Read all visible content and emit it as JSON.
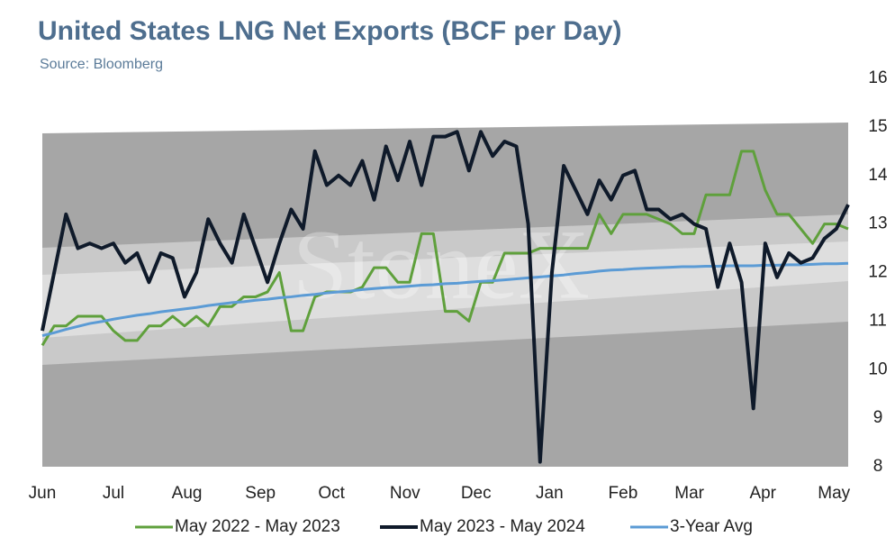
{
  "chart_data": {
    "type": "line",
    "title": "United States LNG Net Exports (BCF per Day)",
    "subtitle": "Source: Bloomberg",
    "watermark": "StoneX",
    "x": [
      0,
      5,
      10,
      15,
      20,
      25,
      30,
      35,
      40,
      45,
      50,
      55,
      60,
      65,
      70,
      75,
      80,
      85,
      90,
      95,
      100,
      105,
      110,
      115,
      120,
      125,
      130,
      135,
      140,
      145,
      150,
      155,
      160,
      165,
      170,
      175,
      180,
      185,
      190,
      195,
      200,
      205,
      210,
      215,
      220,
      225,
      230,
      235,
      240,
      245,
      250,
      255,
      260,
      265,
      270,
      275,
      280,
      285,
      290,
      295,
      300,
      305,
      310,
      315,
      320,
      325,
      330,
      335,
      340
    ],
    "xlim": [
      0,
      340
    ],
    "xticks": [
      {
        "value": 0,
        "label": "Jun"
      },
      {
        "value": 30,
        "label": "Jul"
      },
      {
        "value": 61,
        "label": "Aug"
      },
      {
        "value": 92,
        "label": "Sep"
      },
      {
        "value": 122,
        "label": "Oct"
      },
      {
        "value": 153,
        "label": "Nov"
      },
      {
        "value": 183,
        "label": "Dec"
      },
      {
        "value": 214,
        "label": "Jan"
      },
      {
        "value": 245,
        "label": "Feb"
      },
      {
        "value": 273,
        "label": "Mar"
      },
      {
        "value": 304,
        "label": "Apr"
      },
      {
        "value": 334,
        "label": "May"
      }
    ],
    "ylim": [
      8,
      16
    ],
    "yticks": [
      8,
      9,
      10,
      11,
      12,
      13,
      14,
      15,
      16
    ],
    "series": [
      {
        "name": "May 2022 - May 2023",
        "color": "#5fa03c",
        "width": 3,
        "values": [
          10.5,
          10.9,
          10.9,
          11.1,
          11.1,
          11.1,
          10.8,
          10.6,
          10.6,
          10.9,
          10.9,
          11.1,
          10.9,
          11.1,
          10.9,
          11.3,
          11.3,
          11.5,
          11.5,
          11.6,
          12.0,
          10.8,
          10.8,
          11.5,
          11.6,
          11.6,
          11.6,
          11.7,
          12.1,
          12.1,
          11.8,
          11.8,
          12.8,
          12.8,
          11.2,
          11.2,
          11.0,
          11.8,
          11.8,
          12.4,
          12.4,
          12.4,
          12.5,
          12.5,
          12.5,
          12.5,
          12.5,
          13.2,
          12.8,
          13.2,
          13.2,
          13.2,
          13.1,
          13.0,
          12.8,
          12.8,
          13.6,
          13.6,
          13.6,
          14.5,
          14.5,
          13.7,
          13.2,
          13.2,
          12.9,
          12.6,
          13.0,
          13.0,
          12.9
        ]
      },
      {
        "name": "May 2023 - May 2024",
        "color": "#0f1a2a",
        "width": 4,
        "values": [
          10.8,
          12.0,
          13.2,
          12.5,
          12.6,
          12.5,
          12.6,
          12.2,
          12.4,
          11.8,
          12.4,
          12.3,
          11.5,
          12.0,
          13.1,
          12.6,
          12.2,
          13.2,
          12.5,
          11.8,
          12.6,
          13.3,
          12.9,
          14.5,
          13.8,
          14.0,
          13.8,
          14.3,
          13.5,
          14.6,
          13.9,
          14.7,
          13.8,
          14.8,
          14.8,
          14.9,
          14.1,
          14.9,
          14.4,
          14.7,
          14.6,
          13.0,
          8.1,
          12.0,
          14.2,
          13.7,
          13.2,
          13.9,
          13.5,
          14.0,
          14.1,
          13.3,
          13.3,
          13.1,
          13.2,
          13.0,
          12.9,
          11.7,
          12.6,
          11.8,
          9.2,
          12.6,
          11.9,
          12.4,
          12.2,
          12.3,
          12.7,
          12.9,
          13.4
        ]
      },
      {
        "name": "3-Year Avg",
        "color": "#5b9bd5",
        "width": 3,
        "values": [
          10.7,
          10.76,
          10.83,
          10.89,
          10.95,
          10.99,
          11.04,
          11.08,
          11.12,
          11.15,
          11.19,
          11.22,
          11.25,
          11.28,
          11.32,
          11.35,
          11.38,
          11.4,
          11.43,
          11.45,
          11.48,
          11.5,
          11.53,
          11.55,
          11.58,
          11.6,
          11.62,
          11.65,
          11.67,
          11.69,
          11.7,
          11.72,
          11.74,
          11.75,
          11.77,
          11.78,
          11.8,
          11.82,
          11.83,
          11.85,
          11.87,
          11.89,
          11.91,
          11.93,
          11.95,
          11.98,
          12.0,
          12.03,
          12.05,
          12.06,
          12.08,
          12.09,
          12.1,
          12.11,
          12.12,
          12.12,
          12.13,
          12.13,
          12.14,
          12.14,
          12.14,
          12.15,
          12.15,
          12.16,
          12.16,
          12.17,
          12.18,
          12.18,
          12.19
        ]
      }
    ]
  }
}
